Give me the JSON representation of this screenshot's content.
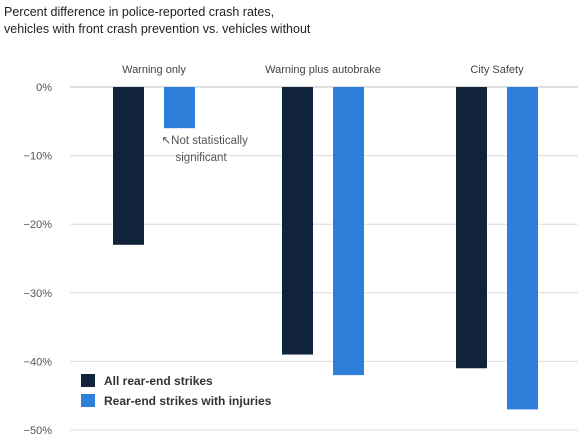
{
  "chart_data": {
    "type": "bar",
    "title_lines": [
      "Percent difference in police-reported crash rates,",
      "vehicles with front crash prevention vs. vehicles without"
    ],
    "categories": [
      "Warning only",
      "Warning plus autobrake",
      "City Safety"
    ],
    "series": [
      {
        "name": "All rear-end strikes",
        "color": "#10233b",
        "values": [
          -23,
          -39,
          -41
        ]
      },
      {
        "name": "Rear-end strikes with injuries",
        "color": "#2e7fda",
        "values": [
          -6,
          -42,
          -47
        ]
      }
    ],
    "ylim": [
      -50,
      0
    ],
    "yticks": [
      0,
      -10,
      -20,
      -30,
      -40,
      -50
    ],
    "ytick_labels": [
      "0%",
      "−10%",
      "−20%",
      "−30%",
      "−40%",
      "−50%"
    ],
    "grid": true,
    "legend_position": "bottom-left",
    "annotation": {
      "lines": [
        "↖Not statistically",
        "significant"
      ],
      "category": 0,
      "series": 1
    }
  }
}
